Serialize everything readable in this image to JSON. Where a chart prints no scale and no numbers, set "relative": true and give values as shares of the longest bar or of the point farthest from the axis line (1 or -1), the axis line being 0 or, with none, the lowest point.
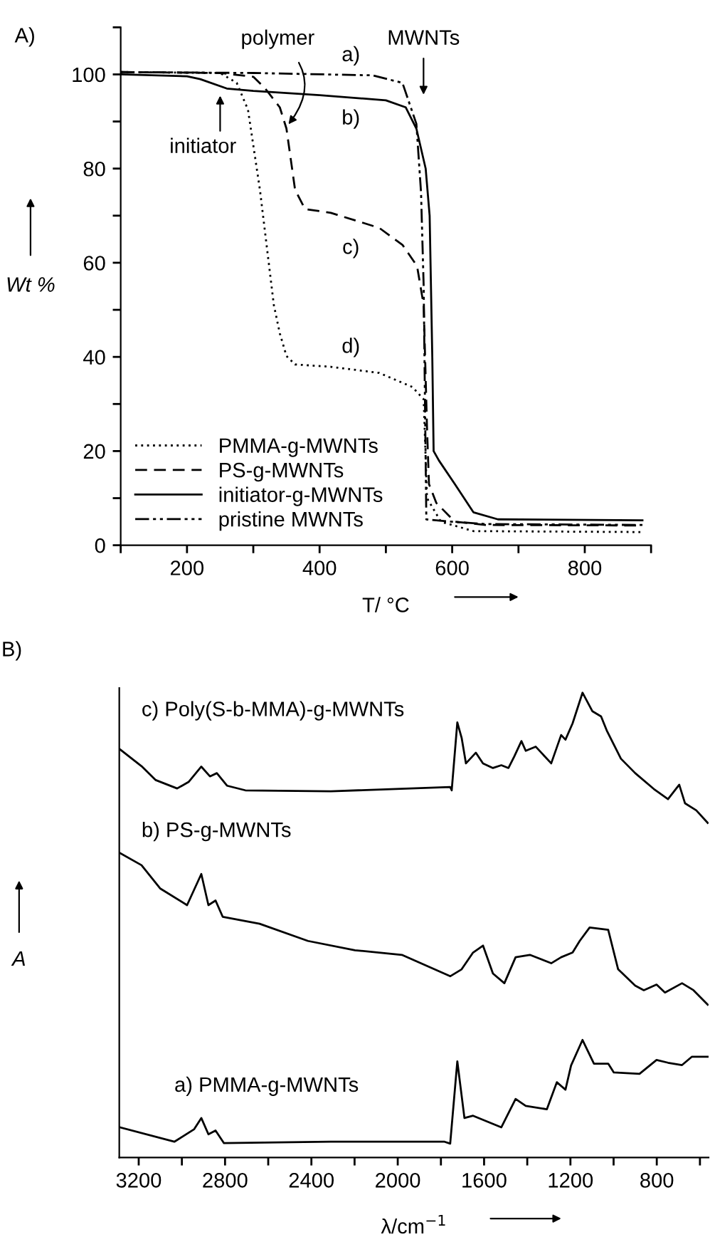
{
  "chart_data": [
    {
      "type": "line",
      "xlabel": "T/ °C",
      "ylabel": "Wt %",
      "xlim": [
        100,
        900
      ],
      "ylim": [
        0,
        110
      ],
      "xticks": [
        {
          "value": 100,
          "label": null
        },
        200,
        {
          "value": 300,
          "label": null
        },
        400,
        {
          "value": 500,
          "label": null
        },
        600,
        {
          "value": 700,
          "label": null
        },
        800,
        {
          "value": 900,
          "label": null
        }
      ],
      "yticks": [
        0,
        {
          "value": 10,
          "label": null
        },
        20,
        {
          "value": 30,
          "label": null
        },
        40,
        {
          "value": 50,
          "label": null
        },
        60,
        {
          "value": 70,
          "label": null
        },
        80,
        {
          "value": 90,
          "label": null
        },
        100,
        {
          "value": 110,
          "label": null
        }
      ],
      "grid": false,
      "legend": "lower left",
      "marker": "none",
      "series": [
        {
          "name": "PMMA-g-MWNTs",
          "color": "#000000",
          "line_style": "dotted",
          "x": [
            100,
            250,
            275,
            292,
            310,
            331,
            340,
            350,
            363,
            417,
            490,
            540,
            557,
            562,
            583,
            632,
            887
          ],
          "values": [
            100.5,
            100.3,
            98.2,
            92.5,
            75.5,
            51,
            45,
            40.2,
            38.4,
            37.9,
            36.6,
            33.6,
            31,
            10,
            5,
            3,
            2.8
          ]
        },
        {
          "name": "PS-g-MWNTs",
          "color": "#000000",
          "line_style": "dashed",
          "x": [
            100,
            250,
            300,
            318,
            340,
            350,
            363,
            378,
            417,
            490,
            525,
            547,
            557,
            562,
            565,
            576,
            604,
            650,
            887
          ],
          "values": [
            100.5,
            100.3,
            99.5,
            97,
            93,
            88.5,
            75.5,
            71.4,
            70.6,
            67.4,
            63.8,
            59.3,
            51,
            25,
            13,
            9,
            5,
            4.3,
            4.2
          ]
        },
        {
          "name": "initiator-g-MWNTs",
          "color": "#000000",
          "line_style": "solid",
          "x": [
            100,
            200,
            220,
            260,
            300,
            400,
            500,
            530,
            546,
            560,
            566,
            570,
            572,
            580,
            604,
            632,
            669,
            887
          ],
          "values": [
            100,
            99.6,
            99,
            97,
            96.5,
            95.6,
            94.5,
            93,
            88.5,
            80,
            70,
            40,
            20,
            18,
            13,
            7,
            5.5,
            5.3
          ]
        },
        {
          "name": "pristine MWNTs",
          "color": "#000000",
          "line_style": "dashdot",
          "x": [
            100,
            300,
            480,
            525,
            546,
            553,
            557,
            559,
            561,
            600,
            650,
            887
          ],
          "values": [
            100.5,
            100.3,
            99.8,
            98.2,
            89.5,
            75,
            55,
            30,
            5.5,
            5,
            4.5,
            4.3
          ]
        }
      ],
      "annotations": [
        "A)",
        "a)",
        "b)",
        "c)",
        "d)",
        "MWNTs",
        {
          "text": "polymer",
          "x": 353,
          "y": 89.4
        },
        "initiator"
      ]
    },
    {
      "type": "line",
      "relative": true,
      "xlabel": "λ/cm$^{−1}$",
      "ylabel": "A",
      "xlim": [
        3290,
        560
      ],
      "xticks": [
        3200,
        {
          "value": 3000,
          "label": null
        },
        2800,
        {
          "value": 2600,
          "label": null
        },
        2400,
        {
          "value": 2200,
          "label": null
        },
        2000,
        {
          "value": 1800,
          "label": null
        },
        1600,
        {
          "value": 1400,
          "label": null
        },
        1200,
        {
          "value": 1000,
          "label": null
        },
        800,
        {
          "value": 600,
          "label": null
        }
      ],
      "grid": false,
      "legend": false,
      "marker": "none",
      "line_style": "solid",
      "series": [
        {
          "name": "c) Poly(S-b-MMA)-g-MWNTs",
          "color": "#000000",
          "x": [
            3286,
            3187,
            3121,
            3022,
            2969,
            2910,
            2870,
            2838,
            2791,
            2706,
            2310,
            1757,
            1750,
            1724,
            1704,
            1684,
            1638,
            1605,
            1559,
            1520,
            1487,
            1460,
            1427,
            1407,
            1361,
            1289,
            1243,
            1223,
            1190,
            1144,
            1098,
            1058,
            1032,
            966,
            900,
            814,
            748,
            696,
            669,
            617,
            564
          ],
          "values": [
            0.878,
            0.842,
            0.812,
            0.794,
            0.808,
            0.841,
            0.82,
            0.827,
            0.8,
            0.79,
            0.788,
            0.797,
            0.79,
            0.936,
            0.903,
            0.848,
            0.871,
            0.848,
            0.838,
            0.844,
            0.838,
            0.863,
            0.896,
            0.875,
            0.884,
            0.848,
            0.909,
            0.899,
            0.934,
            1.0,
            0.96,
            0.949,
            0.919,
            0.858,
            0.827,
            0.793,
            0.771,
            0.802,
            0.762,
            0.747,
            0.72
          ]
        },
        {
          "name": "b) PS-g-MWNTs",
          "color": "#000000",
          "x": [
            3286,
            3187,
            3101,
            2976,
            2910,
            2877,
            2844,
            2811,
            2640,
            2416,
            2198,
            1981,
            1757,
            1704,
            1651,
            1605,
            1559,
            1506,
            1454,
            1388,
            1289,
            1243,
            1190,
            1157,
            1111,
            1025,
            979,
            900,
            860,
            801,
            762,
            683,
            630,
            564
          ],
          "values": [
            0.655,
            0.629,
            0.579,
            0.543,
            0.61,
            0.543,
            0.553,
            0.518,
            0.503,
            0.466,
            0.446,
            0.436,
            0.39,
            0.405,
            0.441,
            0.456,
            0.396,
            0.375,
            0.431,
            0.436,
            0.418,
            0.431,
            0.441,
            0.466,
            0.495,
            0.49,
            0.405,
            0.37,
            0.36,
            0.372,
            0.355,
            0.375,
            0.36,
            0.329
          ]
        },
        {
          "name": "a) PMMA-g-MWNTs",
          "color": "#000000",
          "x": [
            3286,
            3035,
            2943,
            2910,
            2877,
            2844,
            2805,
            2310,
            1783,
            1757,
            1724,
            1691,
            1651,
            1520,
            1454,
            1407,
            1309,
            1263,
            1223,
            1197,
            1144,
            1091,
            1025,
            999,
            880,
            801,
            748,
            683,
            637,
            564
          ],
          "values": [
            0.065,
            0.034,
            0.061,
            0.085,
            0.05,
            0.058,
            0.031,
            0.034,
            0.034,
            0.03,
            0.207,
            0.085,
            0.09,
            0.065,
            0.126,
            0.111,
            0.104,
            0.162,
            0.146,
            0.198,
            0.253,
            0.202,
            0.202,
            0.183,
            0.18,
            0.21,
            0.204,
            0.199,
            0.217,
            0.217
          ]
        }
      ],
      "annotations": [
        "B)"
      ]
    }
  ]
}
